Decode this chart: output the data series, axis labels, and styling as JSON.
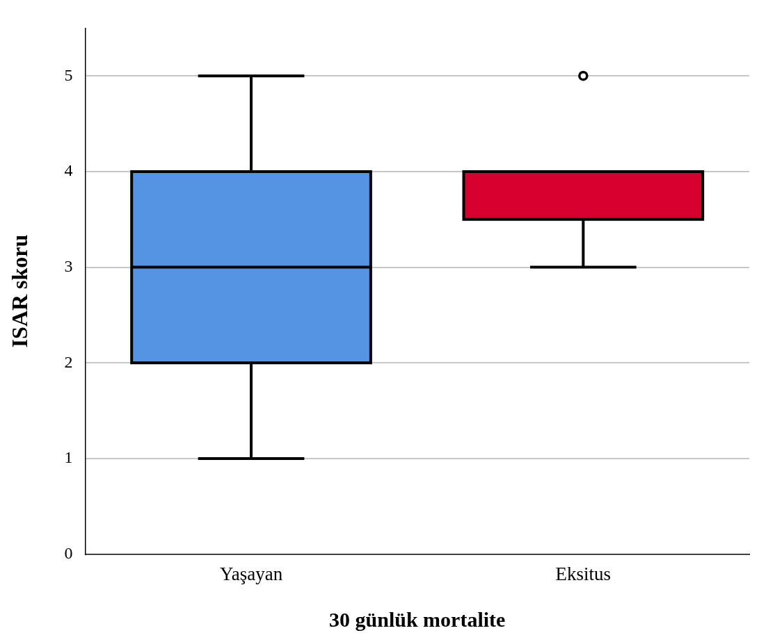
{
  "chart_data": {
    "type": "box",
    "xlabel": "30 günlük mortalite",
    "ylabel": "ISAR skoru",
    "categories": [
      "Yaşayan",
      "Eksitus"
    ],
    "boxes": [
      {
        "low": 1,
        "q1": 2,
        "median": 3,
        "q3": 4,
        "high": 5
      },
      {
        "low": 3,
        "q1": 3.5,
        "median": 4,
        "q3": 4,
        "high": 4,
        "outliers": [
          5
        ]
      }
    ],
    "colors": [
      "#5594e3",
      "#d5002e"
    ],
    "ylim": [
      0,
      5.5
    ],
    "yticks": [
      0,
      1,
      2,
      3,
      4,
      5
    ],
    "grid": "y"
  }
}
